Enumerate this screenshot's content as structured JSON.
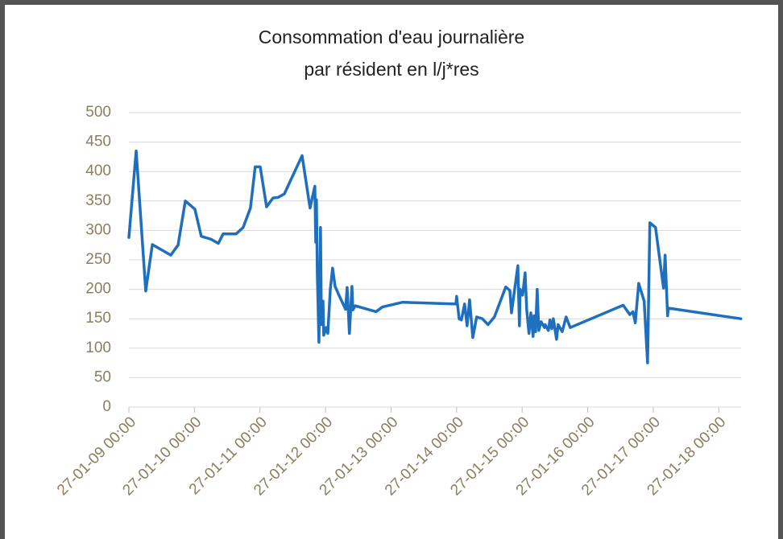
{
  "chart_data": {
    "type": "line",
    "title": [
      "Consommation d'eau journalière",
      "par résident en l/j*res"
    ],
    "color": "#1f6fbf",
    "x": [
      "27-01-09 00:00",
      "27-01-09 02:40",
      "27-01-09 06:10",
      "27-01-09 08:35",
      "27-01-09 15:20",
      "27-01-09 18:00",
      "27-01-09 20:40",
      "27-01-10 00:10",
      "27-01-10 02:30",
      "27-01-10 06:05",
      "27-01-10 08:45",
      "27-01-10 10:30",
      "27-01-10 15:15",
      "27-01-10 17:50",
      "27-01-10 20:30",
      "27-01-10 22:15",
      "27-01-11 00:05",
      "27-01-11 02:25",
      "27-01-11 04:45",
      "27-01-11 06:35",
      "27-01-11 08:55",
      "27-01-11 15:25",
      "27-01-11 18:20",
      "27-01-11 20:05",
      "27-01-11 20:25",
      "27-01-11 20:40",
      "27-01-11 21:00",
      "27-01-11 21:35",
      "27-01-11 22:10",
      "27-01-11 22:30",
      "27-01-11 23:05",
      "27-01-11 23:20",
      "27-01-12 00:15",
      "27-01-12 00:50",
      "27-01-12 01:45",
      "27-01-12 02:35",
      "27-01-12 03:30",
      "27-01-12 04:55",
      "27-01-12 07:20",
      "27-01-12 07:55",
      "27-01-12 08:45",
      "27-01-12 09:40",
      "27-01-12 10:00",
      "27-01-12 10:50",
      "27-01-12 18:30",
      "27-01-12 20:50",
      "27-01-13 04:15",
      "27-01-13 23:45",
      "27-01-14 00:00",
      "27-01-14 00:55",
      "27-01-14 01:45",
      "27-01-14 02:55",
      "27-01-14 03:50",
      "27-01-14 04:45",
      "27-01-14 05:55",
      "27-01-14 07:20",
      "27-01-14 09:25",
      "27-01-14 11:30",
      "27-01-14 13:50",
      "27-01-14 18:00",
      "27-01-14 19:30",
      "27-01-14 20:05",
      "27-01-14 22:25",
      "27-01-14 23:00",
      "27-01-14 23:15",
      "27-01-15 00:10",
      "27-01-15 01:05",
      "27-01-15 01:40",
      "27-01-15 02:30",
      "27-01-15 03:10",
      "27-01-15 04:00",
      "27-01-15 04:20",
      "27-01-15 04:55",
      "27-01-15 05:30",
      "27-01-15 06:05",
      "27-01-15 06:55",
      "27-01-15 08:10",
      "27-01-15 08:25",
      "27-01-15 09:35",
      "27-01-15 10:10",
      "27-01-15 10:50",
      "27-01-15 11:25",
      "27-01-15 12:35",
      "27-01-15 13:10",
      "27-01-15 14:40",
      "27-01-15 16:05",
      "27-01-15 17:35",
      "27-01-16 13:00",
      "27-01-16 15:25",
      "27-01-16 16:35",
      "27-01-16 17:25",
      "27-01-16 18:40",
      "27-01-16 20:40",
      "27-01-16 21:55",
      "27-01-16 22:45",
      "27-01-17 00:50",
      "27-01-17 03:45",
      "27-01-17 04:20",
      "27-01-17 05:15",
      "27-01-17 05:30",
      "27-01-18 08:05"
    ],
    "values": [
      288,
      435,
      197,
      276,
      258,
      275,
      350,
      336,
      290,
      285,
      278,
      294,
      294,
      305,
      338,
      408,
      408,
      340,
      355,
      356,
      362,
      427,
      338,
      375,
      280,
      352,
      225,
      110,
      305,
      140,
      180,
      122,
      135,
      125,
      200,
      236,
      205,
      190,
      166,
      203,
      125,
      205,
      165,
      172,
      162,
      170,
      178,
      175,
      188,
      150,
      148,
      175,
      138,
      182,
      118,
      153,
      150,
      140,
      153,
      204,
      198,
      160,
      240,
      138,
      200,
      190,
      228,
      165,
      125,
      160,
      120,
      155,
      128,
      200,
      130,
      145,
      135,
      140,
      130,
      148,
      133,
      150,
      115,
      140,
      128,
      153,
      135,
      173,
      157,
      162,
      143,
      210,
      180,
      75,
      313,
      305,
      202,
      258,
      155,
      168,
      150
    ],
    "xlim": [
      "27-01-09 00:00",
      "27-01-18 08:10"
    ],
    "xticks": [
      "27-01-09 00:00",
      "27-01-10 00:00",
      "27-01-11 00:00",
      "27-01-12 00:00",
      "27-01-13 00:00",
      "27-01-14 00:00",
      "27-01-15 00:00",
      "27-01-16 00:00",
      "27-01-17 00:00",
      "27-01-18 00:00"
    ],
    "ylim": [
      0,
      500
    ],
    "yticks": [
      0,
      50,
      100,
      150,
      200,
      250,
      300,
      350,
      400,
      450,
      500
    ],
    "grid": true
  }
}
